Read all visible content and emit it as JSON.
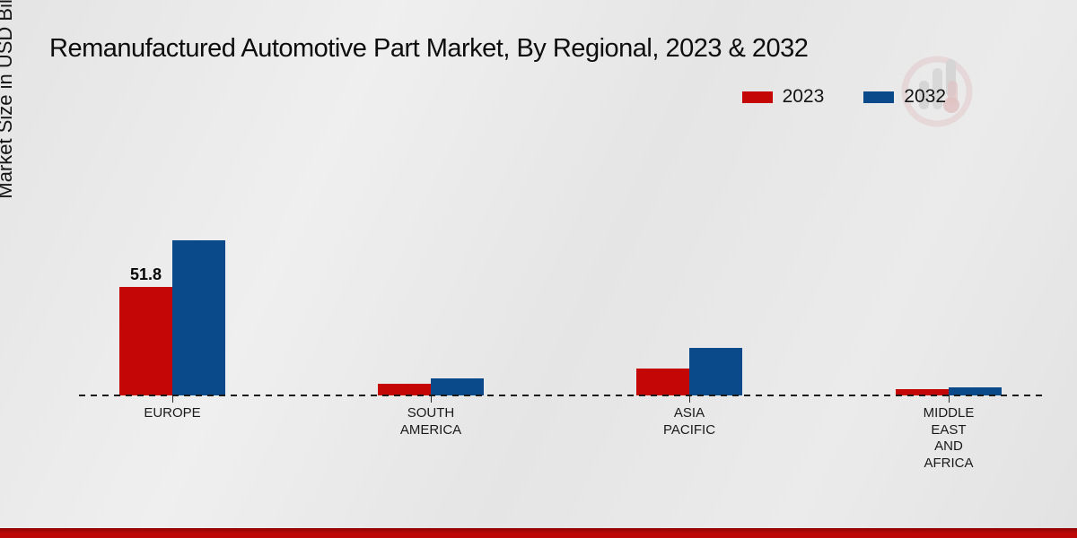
{
  "title": "Remanufactured Automotive Part Market, By Regional, 2023 & 2032",
  "y_axis_label": "Market Size in USD Billion",
  "colors": {
    "series_2023": "#c50606",
    "series_2032": "#0a4a8a",
    "footer_accent": "#b00505"
  },
  "legend": {
    "position": "top-right",
    "items": [
      {
        "label": "2023",
        "color": "#c50606"
      },
      {
        "label": "2032",
        "color": "#0a4a8a"
      }
    ]
  },
  "watermark_icon": "market-research-logo",
  "chart_data": {
    "type": "bar",
    "title": "Remanufactured Automotive Part Market, By Regional, 2023 & 2032",
    "xlabel": "",
    "ylabel": "Market Size in USD Billion",
    "categories": [
      "EUROPE",
      "SOUTH\nAMERICA",
      "ASIA\nPACIFIC",
      "MIDDLE\nEAST\nAND\nAFRICA"
    ],
    "series": [
      {
        "name": "2023",
        "color": "#c50606",
        "values": [
          51.8,
          5.6,
          12.8,
          3.0
        ]
      },
      {
        "name": "2032",
        "color": "#0a4a8a",
        "values": [
          74.0,
          8.1,
          22.7,
          3.9
        ]
      }
    ],
    "data_labels": [
      {
        "series_index": 0,
        "category_index": 0,
        "text": "51.8"
      }
    ],
    "ylim": [
      0,
      80
    ],
    "grid": false,
    "y_axis_ticks_visible": false,
    "baseline_style": "dashed",
    "legend_position": "top-right"
  }
}
